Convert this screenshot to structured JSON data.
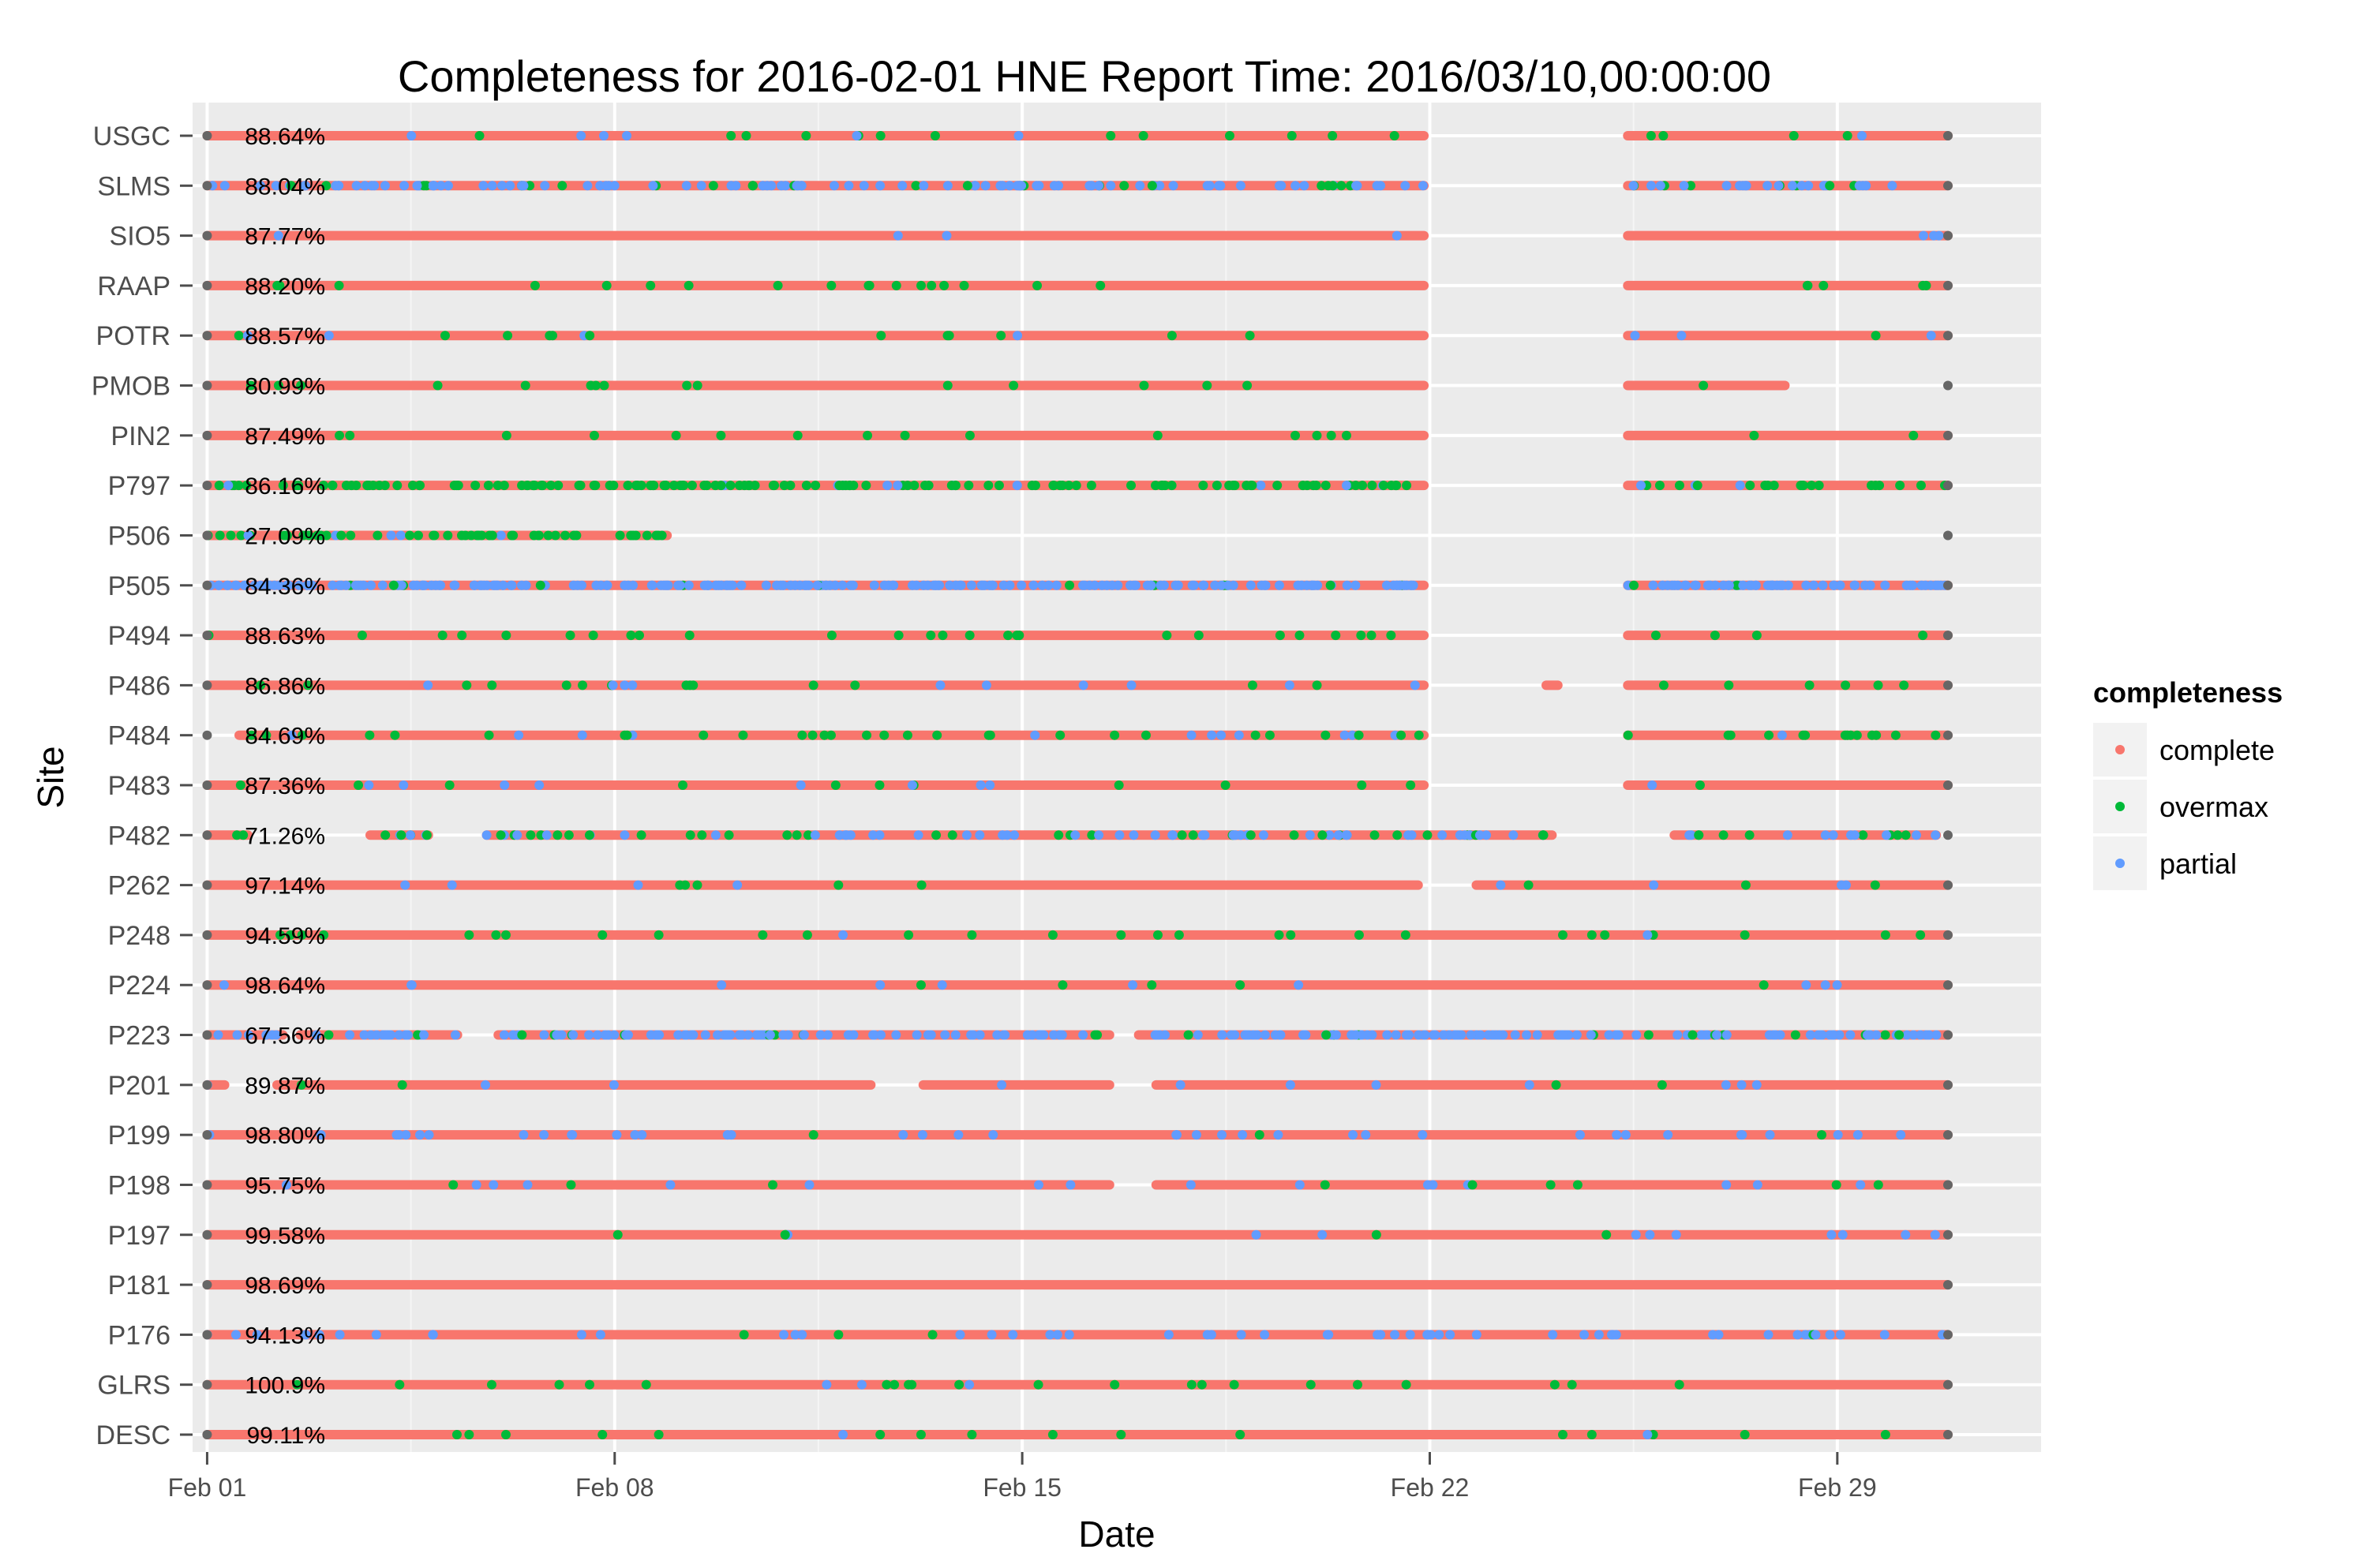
{
  "chart_data": {
    "type": "scatter",
    "title": "Completeness for  2016-02-01 HNE  Report Time:  2016/03/10,00:00:00",
    "xlabel": "Date",
    "ylabel": "Site",
    "x_ticks": [
      "Feb 01",
      "Feb 08",
      "Feb 15",
      "Feb 22",
      "Feb 29"
    ],
    "x_range_days": [
      -0.25,
      31.5
    ],
    "grid": true,
    "legend": {
      "title": "completeness",
      "placement": "right",
      "entries": [
        {
          "name": "complete",
          "color": "#F8766D"
        },
        {
          "name": "overmax",
          "color": "#00BA38"
        },
        {
          "name": "partial",
          "color": "#619CFF"
        }
      ]
    },
    "colors": {
      "complete": "#F8766D",
      "overmax": "#00BA38",
      "partial": "#619CFF",
      "endpoint": "#666666"
    },
    "sites": [
      {
        "name": "USGC",
        "pct": "88.64%",
        "segments": [
          [
            0,
            20.9
          ],
          [
            24.4,
            29.9
          ]
        ],
        "overmax": 0.03,
        "partial": 0.01
      },
      {
        "name": "SLMS",
        "pct": "88.04%",
        "segments": [
          [
            0,
            20.9
          ],
          [
            24.4,
            29.9
          ]
        ],
        "overmax": 0.06,
        "partial": 0.25
      },
      {
        "name": "SIO5",
        "pct": "87.77%",
        "segments": [
          [
            0,
            20.9
          ],
          [
            24.4,
            29.9
          ]
        ],
        "overmax": 0.0,
        "partial": 0.01
      },
      {
        "name": "RAAP",
        "pct": "88.20%",
        "segments": [
          [
            0,
            20.9
          ],
          [
            24.4,
            29.9
          ]
        ],
        "overmax": 0.05,
        "partial": 0.0
      },
      {
        "name": "POTR",
        "pct": "88.57%",
        "segments": [
          [
            0,
            20.9
          ],
          [
            24.4,
            29.9
          ]
        ],
        "overmax": 0.03,
        "partial": 0.01
      },
      {
        "name": "PMOB",
        "pct": "80.99%",
        "segments": [
          [
            0,
            20.9
          ],
          [
            24.4,
            27.1
          ]
        ],
        "overmax": 0.04,
        "partial": 0.0
      },
      {
        "name": "PIN2",
        "pct": "87.49%",
        "segments": [
          [
            0,
            20.9
          ],
          [
            24.4,
            29.9
          ]
        ],
        "overmax": 0.04,
        "partial": 0.0
      },
      {
        "name": "P797",
        "pct": "86.16%",
        "segments": [
          [
            0,
            20.9
          ],
          [
            24.4,
            29.9
          ]
        ],
        "overmax": 0.3,
        "partial": 0.03
      },
      {
        "name": "P506",
        "pct": "27.09%",
        "segments": [
          [
            0,
            7.9
          ]
        ],
        "overmax": 0.35,
        "partial": 0.05
      },
      {
        "name": "P505",
        "pct": "84.36%",
        "segments": [
          [
            0,
            20.9
          ],
          [
            24.4,
            29.9
          ]
        ],
        "overmax": 0.02,
        "partial": 0.55
      },
      {
        "name": "P494",
        "pct": "88.63%",
        "segments": [
          [
            0,
            20.9
          ],
          [
            24.4,
            29.9
          ]
        ],
        "overmax": 0.06,
        "partial": 0.0
      },
      {
        "name": "P486",
        "pct": "86.86%",
        "segments": [
          [
            0,
            20.9
          ],
          [
            23.0,
            23.2
          ],
          [
            24.4,
            29.9
          ]
        ],
        "overmax": 0.05,
        "partial": 0.01
      },
      {
        "name": "P484",
        "pct": "84.69%",
        "segments": [
          [
            0.55,
            20.9
          ],
          [
            24.4,
            29.9
          ]
        ],
        "overmax": 0.1,
        "partial": 0.02
      },
      {
        "name": "P483",
        "pct": "87.36%",
        "segments": [
          [
            0,
            20.9
          ],
          [
            24.4,
            29.9
          ]
        ],
        "overmax": 0.03,
        "partial": 0.02
      },
      {
        "name": "P482",
        "pct": "71.26%",
        "segments": [
          [
            0,
            0.7
          ],
          [
            2.8,
            3.8
          ],
          [
            4.8,
            23.1
          ],
          [
            25.2,
            29.7
          ]
        ],
        "overmax": 0.12,
        "partial": 0.12
      },
      {
        "name": "P262",
        "pct": "97.14%",
        "segments": [
          [
            0,
            20.8
          ],
          [
            21.8,
            29.9
          ]
        ],
        "overmax": 0.01,
        "partial": 0.02
      },
      {
        "name": "P248",
        "pct": "94.59%",
        "segments": [
          [
            0,
            29.9
          ]
        ],
        "overmax": 0.05,
        "partial": 0.01
      },
      {
        "name": "P224",
        "pct": "98.64%",
        "segments": [
          [
            0,
            29.9
          ]
        ],
        "overmax": 0.01,
        "partial": 0.02
      },
      {
        "name": "P223",
        "pct": "67.56%",
        "segments": [
          [
            0,
            1.3
          ],
          [
            1.6,
            4.3
          ],
          [
            5.0,
            15.5
          ],
          [
            16.0,
            29.9
          ]
        ],
        "overmax": 0.05,
        "partial": 0.35
      },
      {
        "name": "P201",
        "pct": "89.87%",
        "segments": [
          [
            0,
            0.3
          ],
          [
            1.2,
            11.4
          ],
          [
            12.3,
            15.5
          ],
          [
            16.3,
            29.9
          ]
        ],
        "overmax": 0.02,
        "partial": 0.02
      },
      {
        "name": "P199",
        "pct": "98.80%",
        "segments": [
          [
            0,
            29.9
          ]
        ],
        "overmax": 0.01,
        "partial": 0.05
      },
      {
        "name": "P198",
        "pct": "95.75%",
        "segments": [
          [
            0,
            15.5
          ],
          [
            16.3,
            29.9
          ]
        ],
        "overmax": 0.02,
        "partial": 0.03
      },
      {
        "name": "P197",
        "pct": "99.58%",
        "segments": [
          [
            0,
            29.9
          ]
        ],
        "overmax": 0.01,
        "partial": 0.01
      },
      {
        "name": "P181",
        "pct": "98.69%",
        "segments": [
          [
            0,
            29.9
          ]
        ],
        "overmax": 0.0,
        "partial": 0.0
      },
      {
        "name": "P176",
        "pct": "94.13%",
        "segments": [
          [
            0,
            29.9
          ]
        ],
        "overmax": 0.01,
        "partial": 0.08
      },
      {
        "name": "GLRS",
        "pct": "100.9%",
        "segments": [
          [
            0,
            29.9
          ]
        ],
        "overmax": 0.04,
        "partial": 0.01
      },
      {
        "name": "DESC",
        "pct": "99.11%",
        "segments": [
          [
            0,
            29.9
          ]
        ],
        "overmax": 0.03,
        "partial": 0.01
      }
    ]
  }
}
